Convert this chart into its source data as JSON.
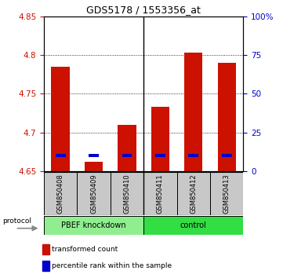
{
  "title": "GDS5178 / 1553356_at",
  "samples": [
    "GSM850408",
    "GSM850409",
    "GSM850410",
    "GSM850411",
    "GSM850412",
    "GSM850413"
  ],
  "red_values": [
    4.785,
    4.662,
    4.71,
    4.733,
    4.803,
    4.79
  ],
  "blue_values": [
    4.67,
    4.67,
    4.67,
    4.67,
    4.67,
    4.67
  ],
  "base_value": 4.65,
  "ylim_min": 4.65,
  "ylim_max": 4.85,
  "yticks_red": [
    4.65,
    4.7,
    4.75,
    4.8,
    4.85
  ],
  "blue_tick_labels": [
    "0",
    "25",
    "50",
    "75",
    "100%"
  ],
  "blue_tick_pos": [
    4.65,
    4.7,
    4.75,
    4.8,
    4.85
  ],
  "protocol_label": "protocol",
  "legend_red": "transformed count",
  "legend_blue": "percentile rank within the sample",
  "bar_width": 0.55,
  "red_color": "#CC1100",
  "blue_color": "#0000CC",
  "group0_label": "PBEF knockdown",
  "group1_label": "control",
  "group0_color": "#90EE90",
  "group1_color": "#33DD44",
  "gray_color": "#C8C8C8",
  "separator_idx": 2.5
}
